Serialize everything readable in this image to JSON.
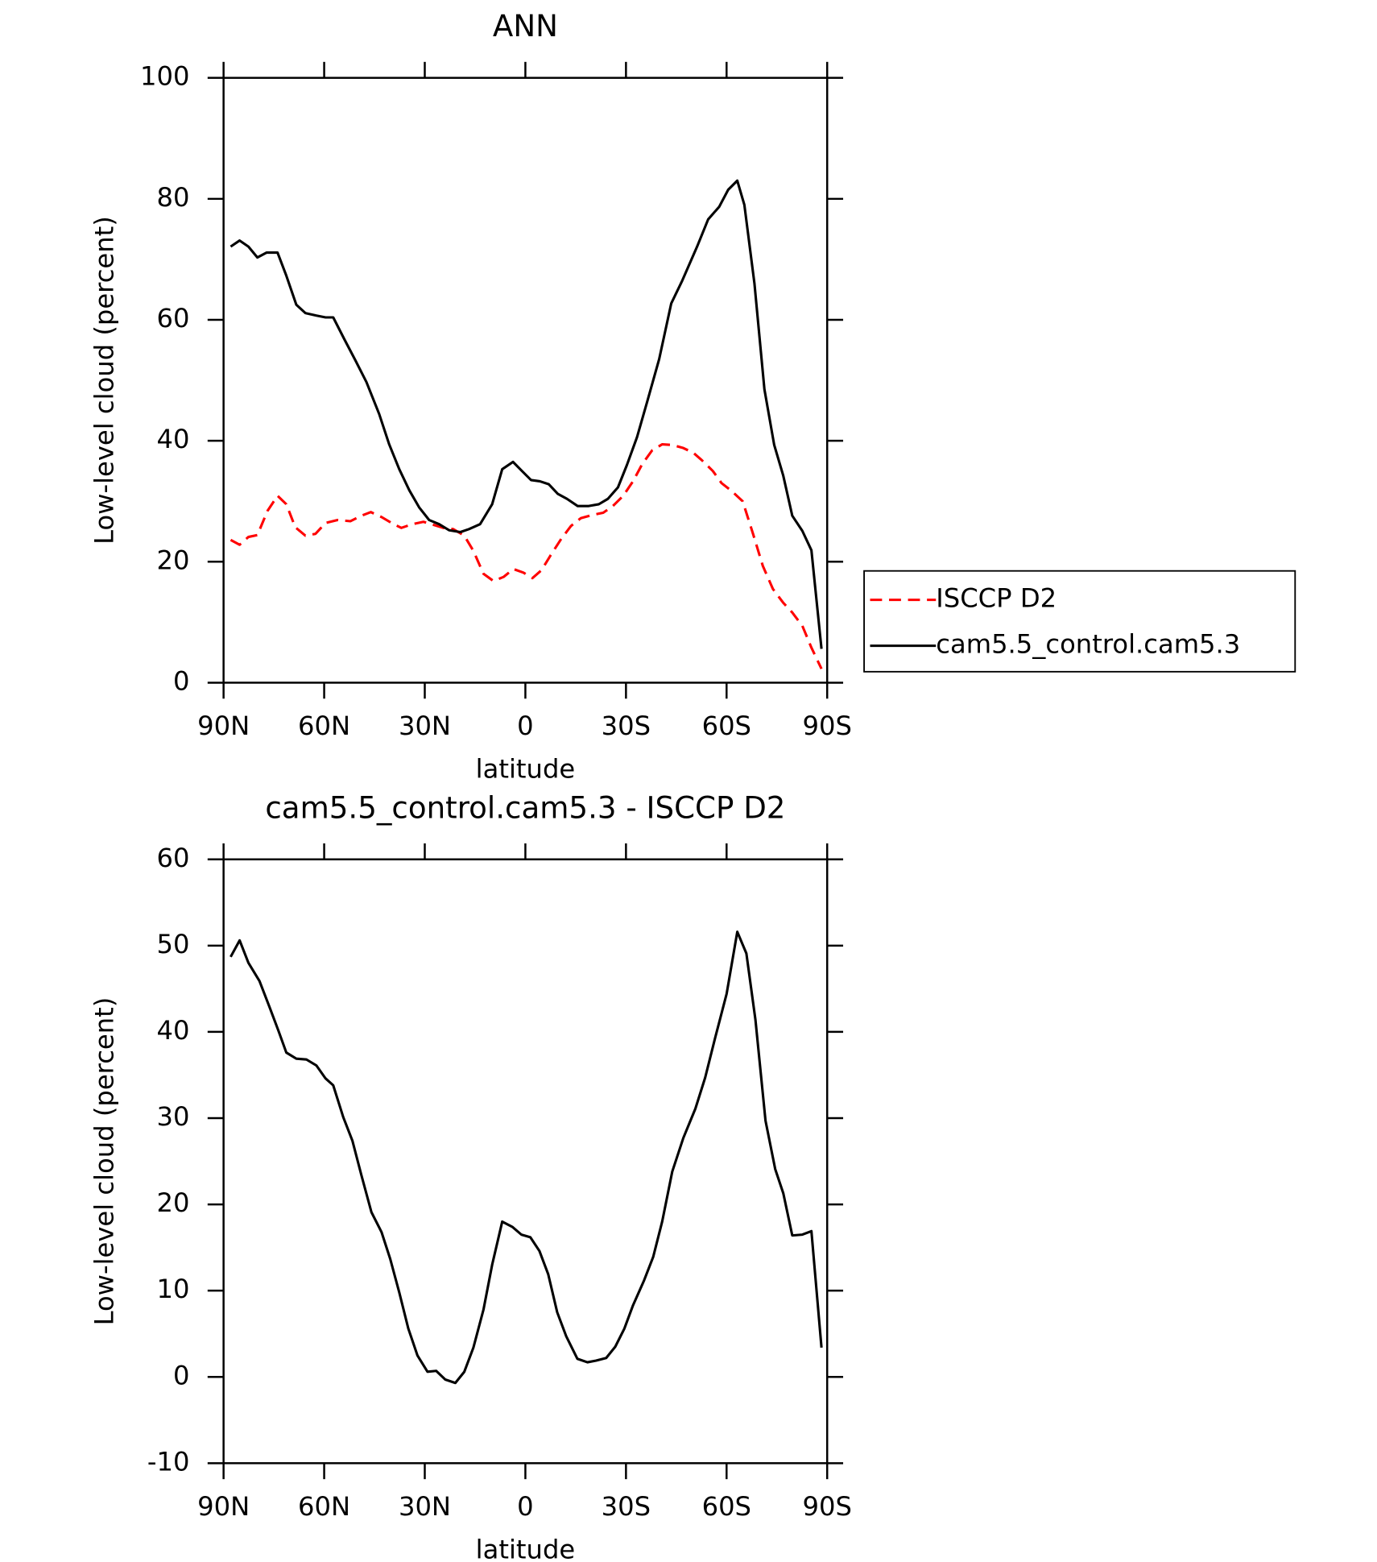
{
  "chart_data": [
    {
      "type": "line",
      "title": "ANN",
      "xlabel": "latitude",
      "ylabel": "Low-level cloud (percent)",
      "xlim": [
        90,
        -90
      ],
      "xticks": [
        {
          "value": 90,
          "label": "90N"
        },
        {
          "value": 60,
          "label": "60N"
        },
        {
          "value": 30,
          "label": "30N"
        },
        0,
        {
          "value": -30,
          "label": "30S"
        },
        {
          "value": -60,
          "label": "60S"
        },
        {
          "value": -90,
          "label": "90S"
        }
      ],
      "ylim": [
        0,
        100
      ],
      "yticks": [
        0,
        20,
        40,
        60,
        80,
        100
      ],
      "legend": "outside right",
      "series": [
        {
          "name": "ISCCP D2",
          "color": "#ff0000",
          "dash": true,
          "x": [
            87.9,
            85.2,
            82.6,
            79.9,
            76.9,
            73.9,
            71.3,
            68.6,
            65.6,
            62.6,
            59.6,
            56.0,
            52.2,
            48.9,
            46.1,
            42.9,
            39.9,
            37.0,
            33.7,
            30.4,
            27.4,
            24.5,
            21.5,
            18.2,
            15.5,
            12.5,
            9.5,
            6.5,
            3.6,
            0.6,
            -2.1,
            -4.8,
            -7.6,
            -10.7,
            -13.6,
            -16.5,
            -19.8,
            -23.2,
            -26.1,
            -29.2,
            -32.1,
            -34.8,
            -37.8,
            -40.8,
            -43.8,
            -47.1,
            -50.1,
            -52.6,
            -55.9,
            -58.5,
            -61.5,
            -64.8,
            -67.9,
            -70.8,
            -73.8,
            -76.9,
            -79.6,
            -82.6,
            -85.3,
            -88.3
          ],
          "values": [
            23.6,
            22.8,
            24.1,
            24.4,
            28.4,
            30.9,
            29.5,
            25.7,
            24.3,
            24.6,
            26.4,
            26.9,
            26.7,
            27.6,
            28.2,
            27.4,
            26.4,
            25.6,
            26.2,
            26.6,
            26.1,
            25.6,
            25.4,
            24.3,
            21.8,
            18.0,
            16.8,
            17.5,
            18.8,
            18.2,
            17.3,
            18.6,
            21.1,
            23.8,
            25.9,
            27.2,
            27.7,
            28.1,
            29.2,
            30.9,
            33.3,
            36.1,
            38.4,
            39.4,
            39.3,
            38.8,
            38.0,
            36.8,
            35.0,
            33.0,
            31.7,
            30.0,
            24.6,
            19.3,
            15.5,
            13.2,
            11.6,
            9.4,
            5.8,
            2.3
          ]
        },
        {
          "name": "cam5.5_control.cam5.3",
          "color": "#000000",
          "dash": false,
          "x": [
            87.9,
            85.2,
            82.6,
            79.9,
            77.2,
            73.9,
            71.3,
            68.3,
            65.6,
            62.3,
            59.6,
            57.3,
            54.0,
            50.7,
            47.4,
            43.6,
            40.6,
            37.6,
            34.6,
            31.7,
            28.7,
            25.7,
            22.7,
            19.4,
            16.8,
            13.5,
            9.9,
            6.9,
            3.7,
            1.0,
            -1.7,
            -4.3,
            -7.0,
            -9.7,
            -12.4,
            -15.6,
            -18.9,
            -21.9,
            -24.6,
            -27.6,
            -30.3,
            -33.3,
            -36.3,
            -39.9,
            -43.5,
            -46.8,
            -51.2,
            -54.5,
            -57.8,
            -60.5,
            -63.2,
            -65.3,
            -68.3,
            -71.3,
            -74.2,
            -76.9,
            -79.6,
            -82.6,
            -85.3,
            -88.3
          ],
          "values": [
            72.1,
            73.1,
            72.1,
            70.3,
            71.1,
            71.1,
            67.3,
            62.5,
            61.1,
            60.7,
            60.4,
            60.4,
            56.8,
            53.3,
            49.7,
            44.4,
            39.4,
            35.3,
            31.8,
            29.0,
            26.9,
            26.2,
            25.2,
            24.9,
            25.4,
            26.2,
            29.5,
            35.3,
            36.5,
            35.0,
            33.5,
            33.3,
            32.8,
            31.2,
            30.4,
            29.2,
            29.2,
            29.5,
            30.4,
            32.3,
            36.0,
            40.6,
            46.4,
            53.5,
            62.7,
            66.5,
            72.1,
            76.6,
            78.7,
            81.5,
            83.0,
            79.0,
            66.0,
            48.5,
            39.3,
            34.2,
            27.6,
            25.1,
            21.9,
            5.6
          ]
        }
      ]
    },
    {
      "type": "line",
      "title": "cam5.5_control.cam5.3 - ISCCP D2",
      "xlabel": "latitude",
      "ylabel": "Low-level cloud (percent)",
      "xlim": [
        90,
        -90
      ],
      "xticks": [
        {
          "value": 90,
          "label": "90N"
        },
        {
          "value": 60,
          "label": "60N"
        },
        {
          "value": 30,
          "label": "30N"
        },
        0,
        {
          "value": -30,
          "label": "30S"
        },
        {
          "value": -60,
          "label": "60S"
        },
        {
          "value": -90,
          "label": "90S"
        }
      ],
      "ylim": [
        -10,
        60
      ],
      "yticks": [
        -10,
        0,
        10,
        20,
        30,
        40,
        50,
        60
      ],
      "color": "#000000",
      "x": [
        87.9,
        85.2,
        82.6,
        79.3,
        76.3,
        73.6,
        71.3,
        68.3,
        65.3,
        62.3,
        59.6,
        57.3,
        54.3,
        51.6,
        48.9,
        45.9,
        42.9,
        40.3,
        37.6,
        34.9,
        32.2,
        29.2,
        26.6,
        23.9,
        20.9,
        18.2,
        15.5,
        12.5,
        9.9,
        6.9,
        3.9,
        1.2,
        -1.5,
        -4.2,
        -6.8,
        -9.5,
        -12.2,
        -15.5,
        -18.5,
        -21.1,
        -24.1,
        -26.8,
        -29.5,
        -32.1,
        -35.4,
        -38.1,
        -40.8,
        -43.8,
        -47.1,
        -50.7,
        -53.6,
        -56.6,
        -60.0,
        -63.2,
        -65.9,
        -68.6,
        -71.6,
        -74.5,
        -76.9,
        -79.6,
        -82.6,
        -85.3,
        -88.3
      ],
      "values": [
        48.7,
        50.6,
        48.0,
        45.9,
        42.9,
        40.1,
        37.6,
        36.9,
        36.8,
        36.1,
        34.6,
        33.8,
        30.1,
        27.4,
        23.4,
        19.1,
        16.8,
        13.7,
        9.8,
        5.6,
        2.5,
        0.6,
        0.7,
        -0.3,
        -0.7,
        0.6,
        3.4,
        7.8,
        13.0,
        18.0,
        17.4,
        16.5,
        16.2,
        14.6,
        11.9,
        7.5,
        4.7,
        2.1,
        1.7,
        1.9,
        2.2,
        3.5,
        5.6,
        8.3,
        11.2,
        13.9,
        18.0,
        23.8,
        27.7,
        31.1,
        34.7,
        39.3,
        44.4,
        51.6,
        49.1,
        41.4,
        29.7,
        24.1,
        21.3,
        16.4,
        16.5,
        16.9,
        3.4
      ]
    }
  ]
}
